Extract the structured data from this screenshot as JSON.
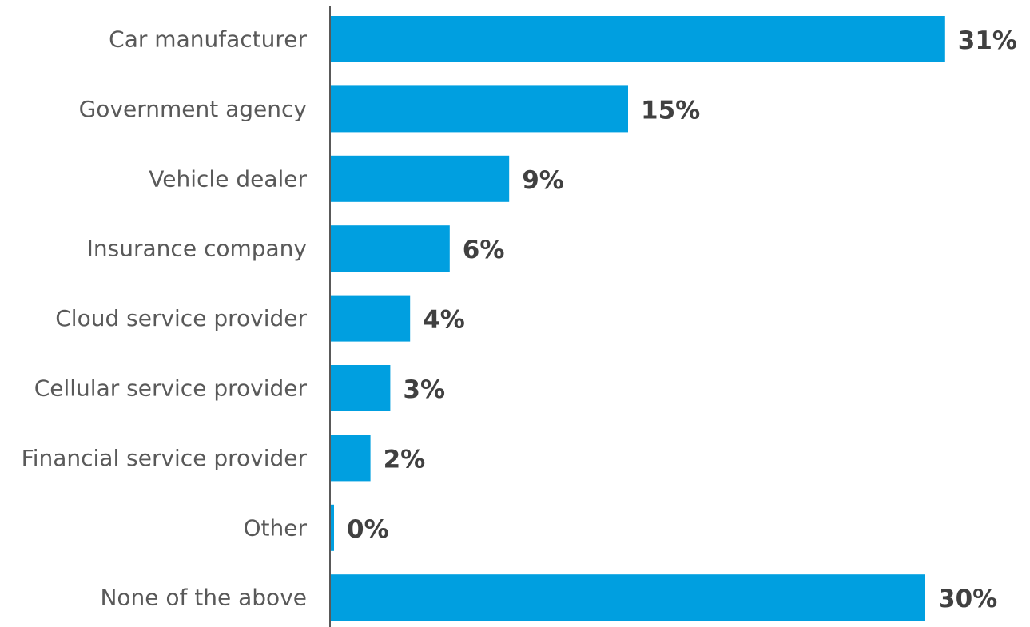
{
  "chart_data": {
    "type": "bar",
    "orientation": "horizontal",
    "categories": [
      "Car manufacturer",
      "Government agency",
      "Vehicle dealer",
      "Insurance company",
      "Cloud service provider",
      "Cellular service provider",
      "Financial service provider",
      "Other",
      "None of the above"
    ],
    "values": [
      31,
      15,
      9,
      6,
      4,
      3,
      2,
      0,
      30
    ],
    "value_labels": [
      "31%",
      "15%",
      "9%",
      "6%",
      "4%",
      "3%",
      "2%",
      "0%",
      "30%"
    ],
    "unit": "%",
    "bar_color": "#009FE0",
    "grid": false,
    "legend": "none"
  }
}
